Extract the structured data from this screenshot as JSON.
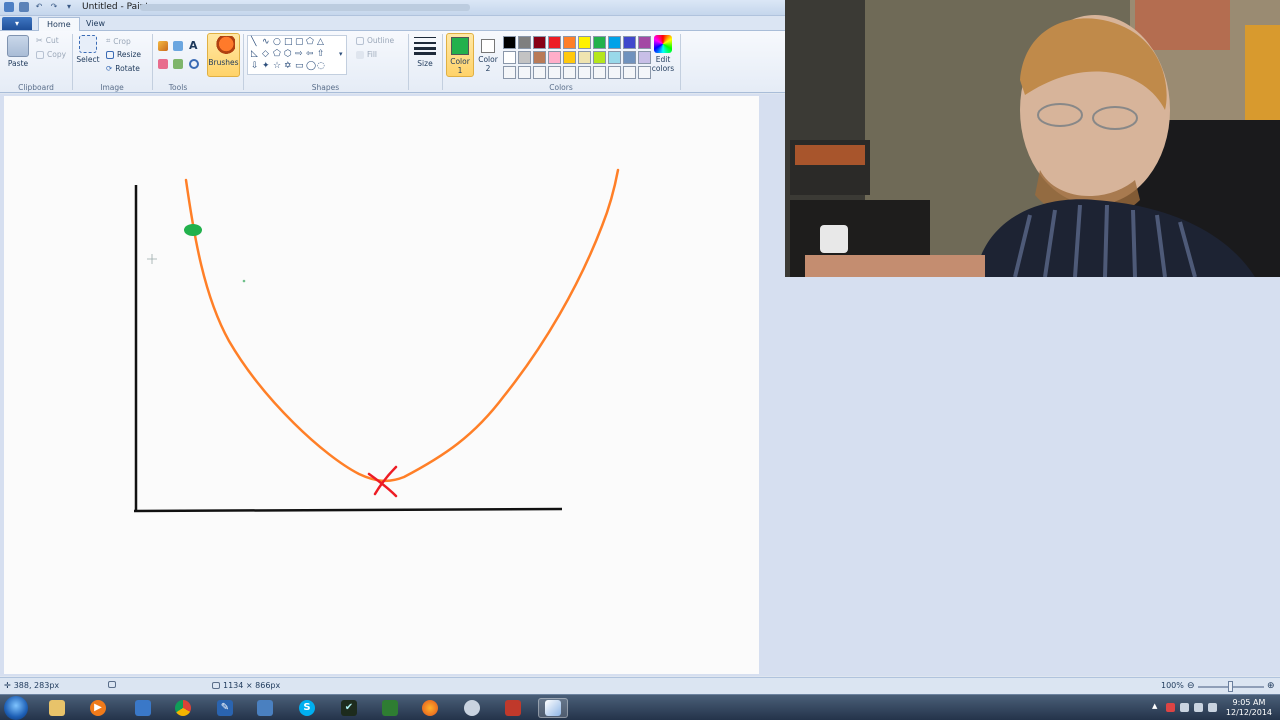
{
  "window": {
    "title": "Untitled - Paint"
  },
  "tabs": {
    "file": "▾",
    "home": "Home",
    "view": "View"
  },
  "ribbon": {
    "clipboard": {
      "label": "Clipboard",
      "paste": "Paste",
      "cut": "Cut",
      "copy": "Copy"
    },
    "image": {
      "label": "Image",
      "select": "Select",
      "crop": "Crop",
      "resize": "Resize",
      "rotate": "Rotate"
    },
    "tools": {
      "label": "Tools",
      "text_tool": "A"
    },
    "brushes": "Brushes",
    "shapes": {
      "label": "Shapes",
      "outline": "Outline",
      "fill": "Fill"
    },
    "size": "Size",
    "colors": {
      "label": "Colors",
      "color1_label": "Color",
      "color1_num": "1",
      "color2_label": "Color",
      "color2_num": "2",
      "edit_colors_line1": "Edit",
      "edit_colors_line2": "colors",
      "color1_value": "#22b14c",
      "palette": [
        "#000000",
        "#7f7f7f",
        "#880015",
        "#ed1c24",
        "#ff7f27",
        "#fff200",
        "#22b14c",
        "#00a2e8",
        "#3f48cc",
        "#a349a4",
        "#ffffff",
        "#c3c3c3",
        "#b97a57",
        "#ffaec9",
        "#ffc90e",
        "#efe4b0",
        "#b5e61d",
        "#99d9ea",
        "#7092be",
        "#c8bfe7",
        "#f4f6f9",
        "#f4f6f9",
        "#f4f6f9",
        "#f4f6f9",
        "#f4f6f9",
        "#f4f6f9",
        "#f4f6f9",
        "#f4f6f9",
        "#f4f6f9",
        "#f4f6f9"
      ]
    }
  },
  "status": {
    "cursor_pos": "388, 283px",
    "canvas_size": "1134 × 866px",
    "zoom": "100%"
  },
  "taskbar": {
    "apps": [
      "explorer",
      "media-player",
      "word-doc",
      "chrome",
      "editor",
      "python",
      "skype",
      "vim",
      "terminal",
      "firefox",
      "search",
      "ide",
      "paint"
    ],
    "skype_letter": "S",
    "time": "9:05 AM",
    "date": "12/12/2014"
  }
}
